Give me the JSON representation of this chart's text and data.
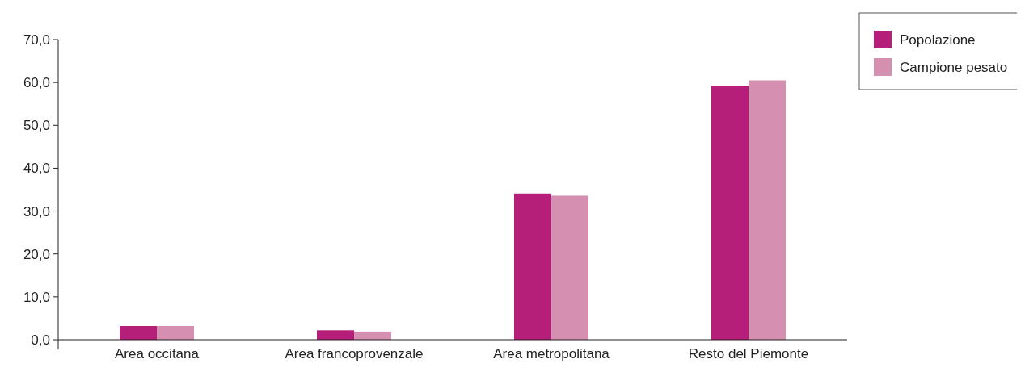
{
  "chart_data": {
    "type": "bar",
    "categories": [
      "Area occitana",
      "Area francoprovenzale",
      "Area metropolitana",
      "Resto del Piemonte"
    ],
    "series": [
      {
        "name": "Popolazione",
        "color": "#b51f79",
        "values": [
          3.2,
          2.2,
          34.1,
          59.2
        ]
      },
      {
        "name": "Campione pesato",
        "color": "#d58fb1",
        "values": [
          3.2,
          1.9,
          33.6,
          60.5
        ]
      }
    ],
    "ylim": [
      0,
      70
    ],
    "yticks": [
      {
        "value": 0,
        "label": "0,0"
      },
      {
        "value": 10,
        "label": "10,0"
      },
      {
        "value": 20,
        "label": "20,0"
      },
      {
        "value": 30,
        "label": "30,0"
      },
      {
        "value": 40,
        "label": "40,0"
      },
      {
        "value": 50,
        "label": "50,0"
      },
      {
        "value": 60,
        "label": "60,0"
      },
      {
        "value": 70,
        "label": "70,0"
      }
    ],
    "grid": false,
    "legend": "top right"
  }
}
